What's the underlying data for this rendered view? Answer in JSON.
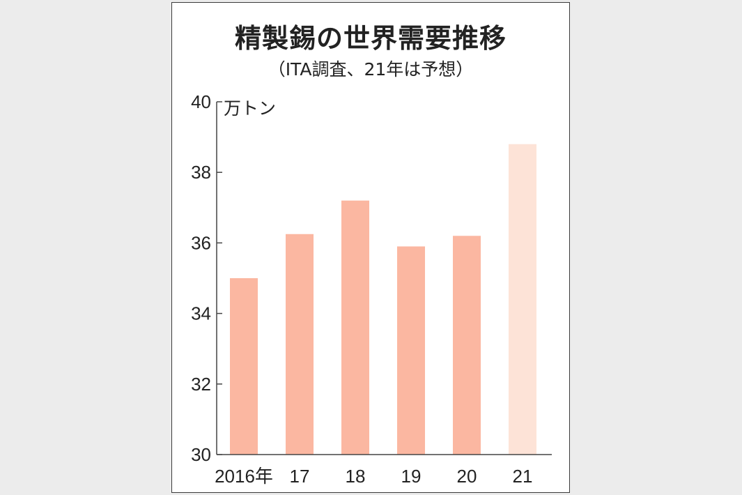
{
  "chart_data": {
    "type": "bar",
    "title": "精製錫の世界需要推移",
    "subtitle": "（ITA調査、21年は予想）",
    "ylabel": "万トン",
    "ylim": [
      30,
      40
    ],
    "yticks": [
      30,
      32,
      34,
      36,
      38,
      40
    ],
    "categories": [
      "2016年",
      "17",
      "18",
      "19",
      "20",
      "21"
    ],
    "values": [
      35.0,
      36.25,
      37.2,
      35.9,
      36.2,
      38.8
    ],
    "forecast": [
      false,
      false,
      false,
      false,
      false,
      true
    ],
    "grid": false,
    "colors": {
      "bar": "#fbb7a1",
      "bar_forecast": "#fde3d7",
      "axis": "#444444",
      "text": "#222222"
    }
  }
}
